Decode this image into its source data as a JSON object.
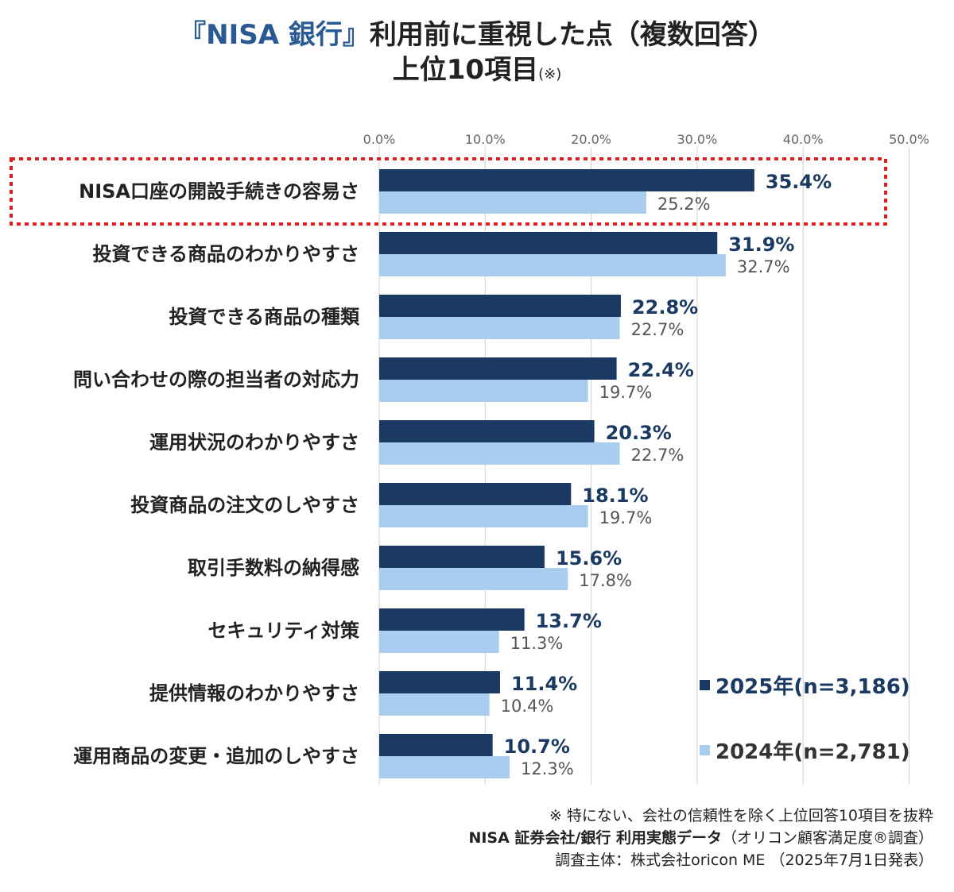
{
  "title": {
    "accent": "『NISA 銀行』",
    "main": "利用前に重視した点（複数回答）",
    "line2": "上位10項目",
    "note": "(※)"
  },
  "colors": {
    "series_2025": "#1b3a63",
    "series_2024": "#a9cdee",
    "label_2025": "#1b3a63",
    "label_2024": "#555555",
    "highlight": "#e02020",
    "grid": "#d0d0d0",
    "title_accent": "#2a5a94"
  },
  "chart_data": {
    "type": "bar",
    "orientation": "horizontal",
    "categories": [
      "NISA口座の開設手続きの容易さ",
      "投資できる商品のわかりやすさ",
      "投資できる商品の種類",
      "問い合わせの際の担当者の対応力",
      "運用状況のわかりやすさ",
      "投資商品の注文のしやすさ",
      "取引手数料の納得感",
      "セキュリティ対策",
      "提供情報のわかりやすさ",
      "運用商品の変更・追加のしやすさ"
    ],
    "series": [
      {
        "name": "2025年(n=3,186)",
        "values": [
          35.4,
          31.9,
          22.8,
          22.4,
          20.3,
          18.1,
          15.6,
          13.7,
          11.4,
          10.7
        ],
        "labels": [
          "35.4%",
          "31.9%",
          "22.8%",
          "22.4%",
          "20.3%",
          "18.1%",
          "15.6%",
          "13.7%",
          "11.4%",
          "10.7%"
        ]
      },
      {
        "name": "2024年(n=2,781)",
        "values": [
          25.2,
          32.7,
          22.7,
          19.7,
          22.7,
          19.7,
          17.8,
          11.3,
          10.4,
          12.3
        ],
        "labels": [
          "25.2%",
          "32.7%",
          "22.7%",
          "19.7%",
          "22.7%",
          "19.7%",
          "17.8%",
          "11.3%",
          "10.4%",
          "12.3%"
        ]
      }
    ],
    "xlim": [
      0,
      50
    ],
    "ticks": [
      0,
      10,
      20,
      30,
      40,
      50
    ],
    "tick_labels": [
      "0.0%",
      "10.0%",
      "20.0%",
      "30.0%",
      "40.0%",
      "50.0%"
    ],
    "grid": true,
    "legend_position": "bottom-right",
    "highlighted_category": "NISA口座の開設手続きの容易さ"
  },
  "footnotes": {
    "line1": "※ 特にない、会社の信頼性を除く上位回答10項目を抜粋",
    "line2_bold": "NISA 証券会社/銀行 利用実態データ",
    "line2_rest": "（オリコン顧客満足度®調査）",
    "line3": "調査主体：株式会社oricon ME （2025年7月1日発表）"
  }
}
